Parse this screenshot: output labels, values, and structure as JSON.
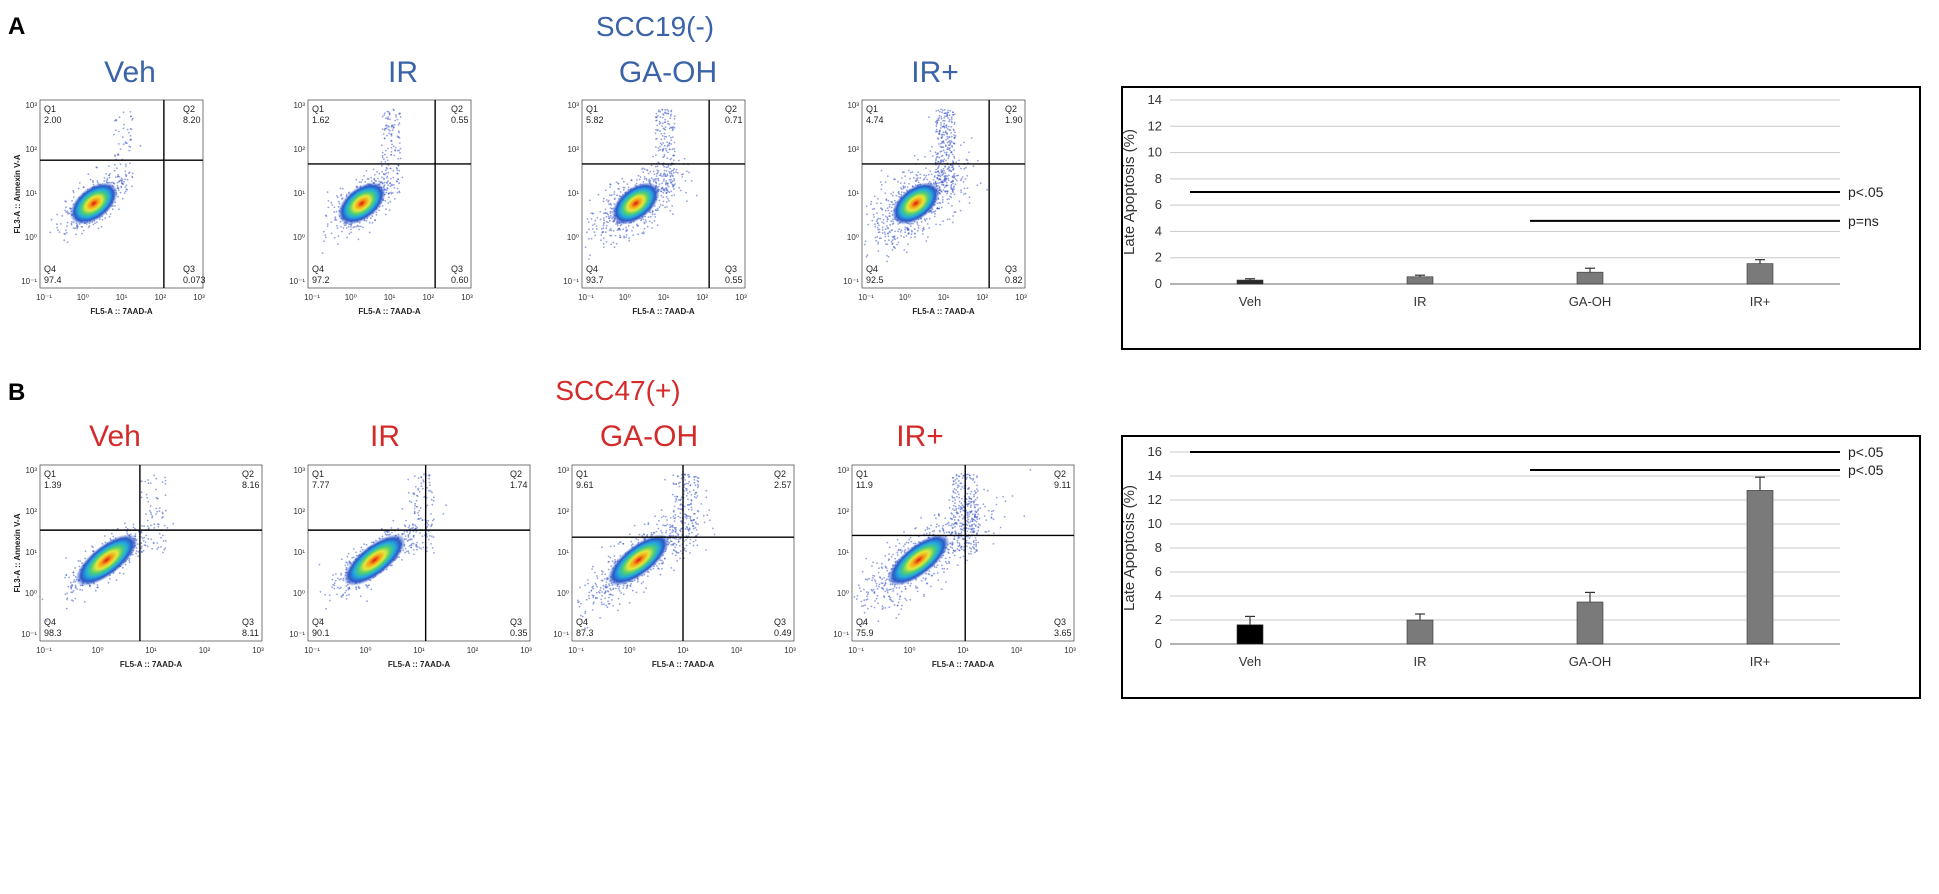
{
  "chart_data": [
    {
      "type": "scatter",
      "panel": "A",
      "title": "SCC19(-)",
      "title_color": "#3a63a8",
      "xlabel": "FL5-A :: 7AAD-A",
      "ylabel": "FL3-A :: Annexin V-A",
      "x_ticks": [
        "10⁻¹",
        "10⁰",
        "10¹",
        "10²",
        "10³"
      ],
      "y_ticks": [
        "10³",
        "10²",
        "10¹",
        "10⁰",
        "10⁻¹"
      ],
      "plots": [
        {
          "sample": "Veh",
          "quadrants": {
            "Q1": "2.00",
            "Q2": "8.20",
            "Q3": "0.073",
            "Q4": "97.4"
          }
        },
        {
          "sample": "IR",
          "quadrants": {
            "Q1": "1.62",
            "Q2": "0.55",
            "Q3": "0.60",
            "Q4": "97.2"
          }
        },
        {
          "sample": "GA-OH",
          "quadrants": {
            "Q1": "5.82",
            "Q2": "0.71",
            "Q3": "0.55",
            "Q4": "93.7"
          }
        },
        {
          "sample": "IR+",
          "quadrants": {
            "Q1": "4.74",
            "Q2": "1.90",
            "Q3": "0.82",
            "Q4": "92.5"
          }
        }
      ],
      "quadrant_keys": {
        "q1": "Q1",
        "q2": "Q2",
        "q3": "Q3",
        "q4": "Q4"
      }
    },
    {
      "type": "scatter",
      "panel": "B",
      "title": "SCC47(+)",
      "title_color": "#d42a2a",
      "xlabel": "FL5-A :: 7AAD-A",
      "ylabel": "FL3-A :: Annexin V-A",
      "x_ticks": [
        "10⁻¹",
        "10⁰",
        "10¹",
        "10²",
        "10³"
      ],
      "y_ticks": [
        "10³",
        "10²",
        "10¹",
        "10⁰",
        "10⁻¹"
      ],
      "plots": [
        {
          "sample": "Veh",
          "quadrants": {
            "Q1": "1.39",
            "Q2": "8.16",
            "Q3": "8.11",
            "Q4": "98.3"
          }
        },
        {
          "sample": "IR",
          "quadrants": {
            "Q1": "7.77",
            "Q2": "1.74",
            "Q3": "0.35",
            "Q4": "90.1"
          }
        },
        {
          "sample": "GA-OH",
          "quadrants": {
            "Q1": "9.61",
            "Q2": "2.57",
            "Q3": "0.49",
            "Q4": "87.3"
          }
        },
        {
          "sample": "IR+",
          "quadrants": {
            "Q1": "11.9",
            "Q2": "9.11",
            "Q3": "3.65",
            "Q4": "75.9"
          }
        }
      ],
      "quadrant_keys": {
        "q1": "Q1",
        "q2": "Q2",
        "q3": "Q3",
        "q4": "Q4"
      }
    },
    {
      "type": "bar",
      "panel": "A",
      "categories": [
        "Veh",
        "IR",
        "GA-OH",
        "IR+"
      ],
      "values": [
        0.3,
        0.55,
        0.9,
        1.55
      ],
      "errors": [
        0.1,
        0.12,
        0.3,
        0.3
      ],
      "bar_colors": [
        "#2a2a2a",
        "#7a7a7a",
        "#7a7a7a",
        "#7a7a7a"
      ],
      "ylabel": "Late Apoptosis (%)",
      "ylim": [
        0,
        14
      ],
      "yticks": [
        0,
        2,
        4,
        6,
        8,
        10,
        12,
        14
      ],
      "significance": [
        {
          "from": "Veh",
          "to": "IR+",
          "y": 7.0,
          "label": "p<.05"
        },
        {
          "from": "GA-OH",
          "to": "IR+",
          "y": 4.8,
          "label": "p=ns"
        }
      ]
    },
    {
      "type": "bar",
      "panel": "B",
      "categories": [
        "Veh",
        "IR",
        "GA-OH",
        "IR+"
      ],
      "values": [
        1.6,
        2.0,
        3.5,
        12.8
      ],
      "errors": [
        0.7,
        0.5,
        0.8,
        1.1
      ],
      "bar_colors": [
        "#000000",
        "#7a7a7a",
        "#7a7a7a",
        "#7a7a7a"
      ],
      "ylabel": "Late Apoptosis (%)",
      "ylim": [
        0,
        16
      ],
      "yticks": [
        0,
        2,
        4,
        6,
        8,
        10,
        12,
        14,
        16
      ],
      "significance": [
        {
          "from": "Veh",
          "to": "IR+",
          "y": 16.0,
          "label": "p<.05"
        },
        {
          "from": "GA-OH",
          "to": "IR+",
          "y": 14.5,
          "label": "p<.05"
        }
      ]
    }
  ],
  "panels": [
    {
      "letter": "A"
    },
    {
      "letter": "B"
    }
  ]
}
